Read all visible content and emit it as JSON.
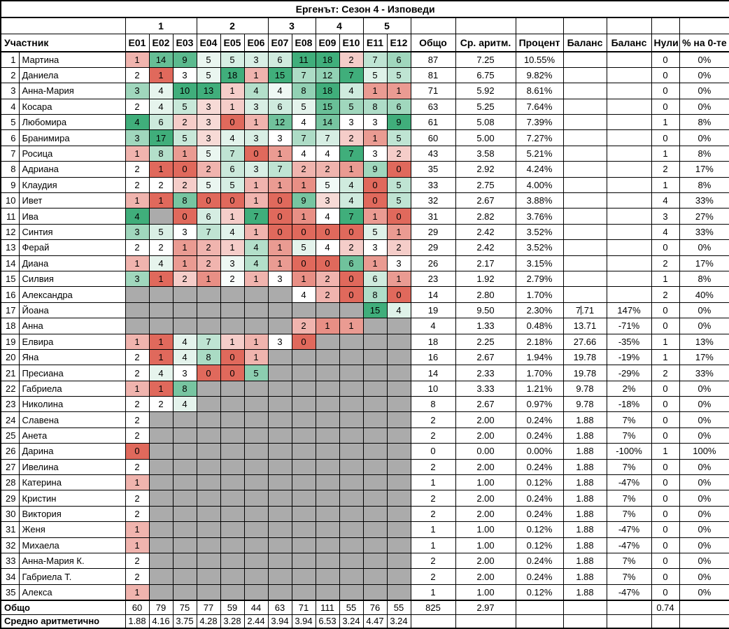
{
  "title": "Ергенът: Сезон 4 - Изповеди",
  "columns": {
    "participant": "Участник",
    "episodes": [
      "E01",
      "E02",
      "E03",
      "E04",
      "E05",
      "E06",
      "E07",
      "E08",
      "E09",
      "E10",
      "E11",
      "E12"
    ],
    "groups": [
      {
        "label": "1",
        "span": 3
      },
      {
        "label": "2",
        "span": 3
      },
      {
        "label": "3",
        "span": 2
      },
      {
        "label": "4",
        "span": 2
      },
      {
        "label": "5",
        "span": 2
      }
    ],
    "totals": [
      "Общо",
      "Ср. аритм.",
      "Процент",
      "Баланс",
      "Баланс",
      "Нули",
      "% на 0-те"
    ]
  },
  "colors": {
    "scale_min": "#E0695C",
    "scale_mid": "#FFFFFF",
    "scale_max": "#40AE7B",
    "empty_cell": "#ABABAB",
    "border": "#000000",
    "background": "#FFFFFF"
  },
  "rows": [
    {
      "num": 1,
      "name": "Мартина",
      "episodes": [
        1,
        14,
        9,
        5,
        5,
        3,
        6,
        11,
        18,
        2,
        7,
        6
      ],
      "total": "87",
      "avg": "7.25",
      "percent": "10.55%",
      "balance1": "",
      "balance2": "",
      "zeros": "0",
      "zero_pct": "0%"
    },
    {
      "num": 2,
      "name": "Даниела",
      "episodes": [
        2,
        1,
        3,
        5,
        18,
        1,
        15,
        7,
        12,
        7,
        5,
        5
      ],
      "total": "81",
      "avg": "6.75",
      "percent": "9.82%",
      "balance1": "",
      "balance2": "",
      "zeros": "0",
      "zero_pct": "0%"
    },
    {
      "num": 3,
      "name": "Анна-Мария",
      "episodes": [
        3,
        4,
        10,
        13,
        1,
        4,
        4,
        8,
        18,
        4,
        1,
        1
      ],
      "total": "71",
      "avg": "5.92",
      "percent": "8.61%",
      "balance1": "",
      "balance2": "",
      "zeros": "0",
      "zero_pct": "0%"
    },
    {
      "num": 4,
      "name": "Косара",
      "episodes": [
        2,
        4,
        5,
        3,
        1,
        3,
        6,
        5,
        15,
        5,
        8,
        6
      ],
      "total": "63",
      "avg": "5.25",
      "percent": "7.64%",
      "balance1": "",
      "balance2": "",
      "zeros": "0",
      "zero_pct": "0%"
    },
    {
      "num": 5,
      "name": "Любомира",
      "episodes": [
        4,
        6,
        2,
        3,
        0,
        1,
        12,
        4,
        14,
        3,
        3,
        9
      ],
      "total": "61",
      "avg": "5.08",
      "percent": "7.39%",
      "balance1": "",
      "balance2": "",
      "zeros": "1",
      "zero_pct": "8%"
    },
    {
      "num": 6,
      "name": "Бранимира",
      "episodes": [
        3,
        17,
        5,
        3,
        4,
        3,
        3,
        7,
        7,
        2,
        1,
        5
      ],
      "total": "60",
      "avg": "5.00",
      "percent": "7.27%",
      "balance1": "",
      "balance2": "",
      "zeros": "0",
      "zero_pct": "0%"
    },
    {
      "num": 7,
      "name": "Росица",
      "episodes": [
        1,
        8,
        1,
        5,
        7,
        0,
        1,
        4,
        4,
        7,
        3,
        2
      ],
      "total": "43",
      "avg": "3.58",
      "percent": "5.21%",
      "balance1": "",
      "balance2": "",
      "zeros": "1",
      "zero_pct": "8%"
    },
    {
      "num": 8,
      "name": "Адриана",
      "episodes": [
        2,
        1,
        0,
        2,
        6,
        3,
        7,
        2,
        2,
        1,
        9,
        0
      ],
      "total": "35",
      "avg": "2.92",
      "percent": "4.24%",
      "balance1": "",
      "balance2": "",
      "zeros": "2",
      "zero_pct": "17%"
    },
    {
      "num": 9,
      "name": "Клаудия",
      "episodes": [
        2,
        2,
        2,
        5,
        5,
        1,
        1,
        1,
        5,
        4,
        0,
        5
      ],
      "total": "33",
      "avg": "2.75",
      "percent": "4.00%",
      "balance1": "",
      "balance2": "",
      "zeros": "1",
      "zero_pct": "8%"
    },
    {
      "num": 10,
      "name": "Ивет",
      "episodes": [
        1,
        1,
        8,
        0,
        0,
        1,
        0,
        9,
        3,
        4,
        0,
        5
      ],
      "total": "32",
      "avg": "2.67",
      "percent": "3.88%",
      "balance1": "",
      "balance2": "",
      "zeros": "4",
      "zero_pct": "33%"
    },
    {
      "num": 11,
      "name": "Ива",
      "episodes": [
        4,
        null,
        0,
        6,
        1,
        7,
        0,
        1,
        4,
        7,
        1,
        0
      ],
      "total": "31",
      "avg": "2.82",
      "percent": "3.76%",
      "balance1": "",
      "balance2": "",
      "zeros": "3",
      "zero_pct": "27%"
    },
    {
      "num": 12,
      "name": "Синтия",
      "episodes": [
        3,
        5,
        3,
        7,
        4,
        1,
        0,
        0,
        0,
        0,
        5,
        1
      ],
      "total": "29",
      "avg": "2.42",
      "percent": "3.52%",
      "balance1": "",
      "balance2": "",
      "zeros": "4",
      "zero_pct": "33%"
    },
    {
      "num": 13,
      "name": "Ферай",
      "episodes": [
        2,
        2,
        1,
        2,
        1,
        4,
        1,
        5,
        4,
        2,
        3,
        2
      ],
      "total": "29",
      "avg": "2.42",
      "percent": "3.52%",
      "balance1": "",
      "balance2": "",
      "zeros": "0",
      "zero_pct": "0%"
    },
    {
      "num": 14,
      "name": "Диана",
      "episodes": [
        1,
        4,
        1,
        2,
        3,
        4,
        1,
        0,
        0,
        6,
        1,
        3
      ],
      "total": "26",
      "avg": "2.17",
      "percent": "3.15%",
      "balance1": "",
      "balance2": "",
      "zeros": "2",
      "zero_pct": "17%"
    },
    {
      "num": 15,
      "name": "Силвия",
      "episodes": [
        3,
        1,
        2,
        1,
        2,
        1,
        3,
        1,
        2,
        0,
        6,
        1
      ],
      "total": "23",
      "avg": "1.92",
      "percent": "2.79%",
      "balance1": "",
      "balance2": "",
      "zeros": "1",
      "zero_pct": "8%"
    },
    {
      "num": 16,
      "name": "Александра",
      "episodes": [
        null,
        null,
        null,
        null,
        null,
        null,
        null,
        4,
        2,
        0,
        8,
        0
      ],
      "total": "14",
      "avg": "2.80",
      "percent": "1.70%",
      "balance1": "",
      "balance2": "",
      "zeros": "2",
      "zero_pct": "40%"
    },
    {
      "num": 17,
      "name": "Йоана",
      "episodes": [
        null,
        null,
        null,
        null,
        null,
        null,
        null,
        null,
        null,
        null,
        15,
        4
      ],
      "total": "19",
      "avg": "9.50",
      "percent": "2.30%",
      "balance1": "7.71",
      "balance1_caret": true,
      "balance2": "147%",
      "zeros": "0",
      "zero_pct": "0%"
    },
    {
      "num": 18,
      "name": "Анна",
      "episodes": [
        null,
        null,
        null,
        null,
        null,
        null,
        null,
        2,
        1,
        1,
        null,
        null
      ],
      "total": "4",
      "avg": "1.33",
      "percent": "0.48%",
      "balance1": "13.71",
      "balance2": "-71%",
      "zeros": "0",
      "zero_pct": "0%"
    },
    {
      "num": 19,
      "name": "Елвира",
      "episodes": [
        1,
        1,
        4,
        7,
        1,
        1,
        3,
        0,
        null,
        null,
        null,
        null
      ],
      "total": "18",
      "avg": "2.25",
      "percent": "2.18%",
      "balance1": "27.66",
      "balance2": "-35%",
      "zeros": "1",
      "zero_pct": "13%"
    },
    {
      "num": 20,
      "name": "Яна",
      "episodes": [
        2,
        1,
        4,
        8,
        0,
        1,
        null,
        null,
        null,
        null,
        null,
        null
      ],
      "total": "16",
      "avg": "2.67",
      "percent": "1.94%",
      "balance1": "19.78",
      "balance2": "-19%",
      "zeros": "1",
      "zero_pct": "17%"
    },
    {
      "num": 21,
      "name": "Пресиана",
      "episodes": [
        2,
        4,
        3,
        0,
        0,
        5,
        null,
        null,
        null,
        null,
        null,
        null
      ],
      "total": "14",
      "avg": "2.33",
      "percent": "1.70%",
      "balance1": "19.78",
      "balance2": "-29%",
      "zeros": "2",
      "zero_pct": "33%"
    },
    {
      "num": 22,
      "name": "Габриела",
      "episodes": [
        1,
        1,
        8,
        null,
        null,
        null,
        null,
        null,
        null,
        null,
        null,
        null
      ],
      "total": "10",
      "avg": "3.33",
      "percent": "1.21%",
      "balance1": "9.78",
      "balance2": "2%",
      "zeros": "0",
      "zero_pct": "0%"
    },
    {
      "num": 23,
      "name": "Николина",
      "episodes": [
        2,
        2,
        4,
        null,
        null,
        null,
        null,
        null,
        null,
        null,
        null,
        null
      ],
      "total": "8",
      "avg": "2.67",
      "percent": "0.97%",
      "balance1": "9.78",
      "balance2": "-18%",
      "zeros": "0",
      "zero_pct": "0%"
    },
    {
      "num": 24,
      "name": "Славена",
      "episodes": [
        2,
        null,
        null,
        null,
        null,
        null,
        null,
        null,
        null,
        null,
        null,
        null
      ],
      "total": "2",
      "avg": "2.00",
      "percent": "0.24%",
      "balance1": "1.88",
      "balance2": "7%",
      "zeros": "0",
      "zero_pct": "0%"
    },
    {
      "num": 25,
      "name": "Анета",
      "episodes": [
        2,
        null,
        null,
        null,
        null,
        null,
        null,
        null,
        null,
        null,
        null,
        null
      ],
      "total": "2",
      "avg": "2.00",
      "percent": "0.24%",
      "balance1": "1.88",
      "balance2": "7%",
      "zeros": "0",
      "zero_pct": "0%"
    },
    {
      "num": 26,
      "name": "Дарина",
      "episodes": [
        0,
        null,
        null,
        null,
        null,
        null,
        null,
        null,
        null,
        null,
        null,
        null
      ],
      "total": "0",
      "avg": "0.00",
      "percent": "0.00%",
      "balance1": "1.88",
      "balance2": "-100%",
      "zeros": "1",
      "zero_pct": "100%"
    },
    {
      "num": 27,
      "name": "Ивелина",
      "episodes": [
        2,
        null,
        null,
        null,
        null,
        null,
        null,
        null,
        null,
        null,
        null,
        null
      ],
      "total": "2",
      "avg": "2.00",
      "percent": "0.24%",
      "balance1": "1.88",
      "balance2": "7%",
      "zeros": "0",
      "zero_pct": "0%"
    },
    {
      "num": 28,
      "name": "Катерина",
      "episodes": [
        1,
        null,
        null,
        null,
        null,
        null,
        null,
        null,
        null,
        null,
        null,
        null
      ],
      "total": "1",
      "avg": "1.00",
      "percent": "0.12%",
      "balance1": "1.88",
      "balance2": "-47%",
      "zeros": "0",
      "zero_pct": "0%"
    },
    {
      "num": 29,
      "name": "Кристин",
      "episodes": [
        2,
        null,
        null,
        null,
        null,
        null,
        null,
        null,
        null,
        null,
        null,
        null
      ],
      "total": "2",
      "avg": "2.00",
      "percent": "0.24%",
      "balance1": "1.88",
      "balance2": "7%",
      "zeros": "0",
      "zero_pct": "0%"
    },
    {
      "num": 30,
      "name": "Виктория",
      "episodes": [
        2,
        null,
        null,
        null,
        null,
        null,
        null,
        null,
        null,
        null,
        null,
        null
      ],
      "total": "2",
      "avg": "2.00",
      "percent": "0.24%",
      "balance1": "1.88",
      "balance2": "7%",
      "zeros": "0",
      "zero_pct": "0%"
    },
    {
      "num": 31,
      "name": "Женя",
      "episodes": [
        1,
        null,
        null,
        null,
        null,
        null,
        null,
        null,
        null,
        null,
        null,
        null
      ],
      "total": "1",
      "avg": "1.00",
      "percent": "0.12%",
      "balance1": "1.88",
      "balance2": "-47%",
      "zeros": "0",
      "zero_pct": "0%"
    },
    {
      "num": 32,
      "name": "Михаела",
      "episodes": [
        1,
        null,
        null,
        null,
        null,
        null,
        null,
        null,
        null,
        null,
        null,
        null
      ],
      "total": "1",
      "avg": "1.00",
      "percent": "0.12%",
      "balance1": "1.88",
      "balance2": "-47%",
      "zeros": "0",
      "zero_pct": "0%"
    },
    {
      "num": 33,
      "name": "Анна-Мария К.",
      "episodes": [
        2,
        null,
        null,
        null,
        null,
        null,
        null,
        null,
        null,
        null,
        null,
        null
      ],
      "total": "2",
      "avg": "2.00",
      "percent": "0.24%",
      "balance1": "1.88",
      "balance2": "7%",
      "zeros": "0",
      "zero_pct": "0%"
    },
    {
      "num": 34,
      "name": "Габриела Т.",
      "episodes": [
        2,
        null,
        null,
        null,
        null,
        null,
        null,
        null,
        null,
        null,
        null,
        null
      ],
      "total": "2",
      "avg": "2.00",
      "percent": "0.24%",
      "balance1": "1.88",
      "balance2": "7%",
      "zeros": "0",
      "zero_pct": "0%"
    },
    {
      "num": 35,
      "name": "Алекса",
      "episodes": [
        1,
        null,
        null,
        null,
        null,
        null,
        null,
        null,
        null,
        null,
        null,
        null
      ],
      "total": "1",
      "avg": "1.00",
      "percent": "0.12%",
      "balance1": "1.88",
      "balance2": "-47%",
      "zeros": "0",
      "zero_pct": "0%"
    }
  ],
  "footer": {
    "total_row": {
      "label": "Общо",
      "episode_totals": [
        "60",
        "79",
        "75",
        "77",
        "59",
        "44",
        "63",
        "71",
        "111",
        "55",
        "76",
        "55"
      ],
      "grand_total": "825",
      "grand_avg": "2.97",
      "percent": "",
      "balance1": "",
      "balance2": "",
      "zeros_avg": "0.74",
      "zero_pct": ""
    },
    "avg_row": {
      "label": "Средно аритметично",
      "episode_averages": [
        "1.88",
        "4.16",
        "3.75",
        "4.28",
        "3.28",
        "2.44",
        "3.94",
        "3.94",
        "6.53",
        "3.24",
        "4.47",
        "3.24"
      ],
      "total": "",
      "avg": "",
      "percent": "",
      "balance1": "",
      "balance2": "",
      "zeros": "",
      "zero_pct": ""
    }
  }
}
